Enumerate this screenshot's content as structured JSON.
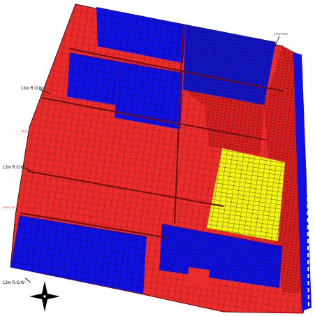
{
  "map": {
    "row_labels": [
      "13m R.O.W",
      "13m R.O.W",
      "13m R.O.W"
    ],
    "red_road_labels": [
      "NEW 13m ROAD",
      "NEW 13m ROAD"
    ],
    "top_right_label": "STRIP PARK",
    "compass_icon": "north-arrow-icon",
    "colors": {
      "red_parcel": "#ec2b2b",
      "blue_parcel": "#1010e0",
      "yellow_parcel": "#f4f410",
      "dark_road": "#6a1010",
      "grid_line": "#222222",
      "background": "#ffffff"
    }
  }
}
